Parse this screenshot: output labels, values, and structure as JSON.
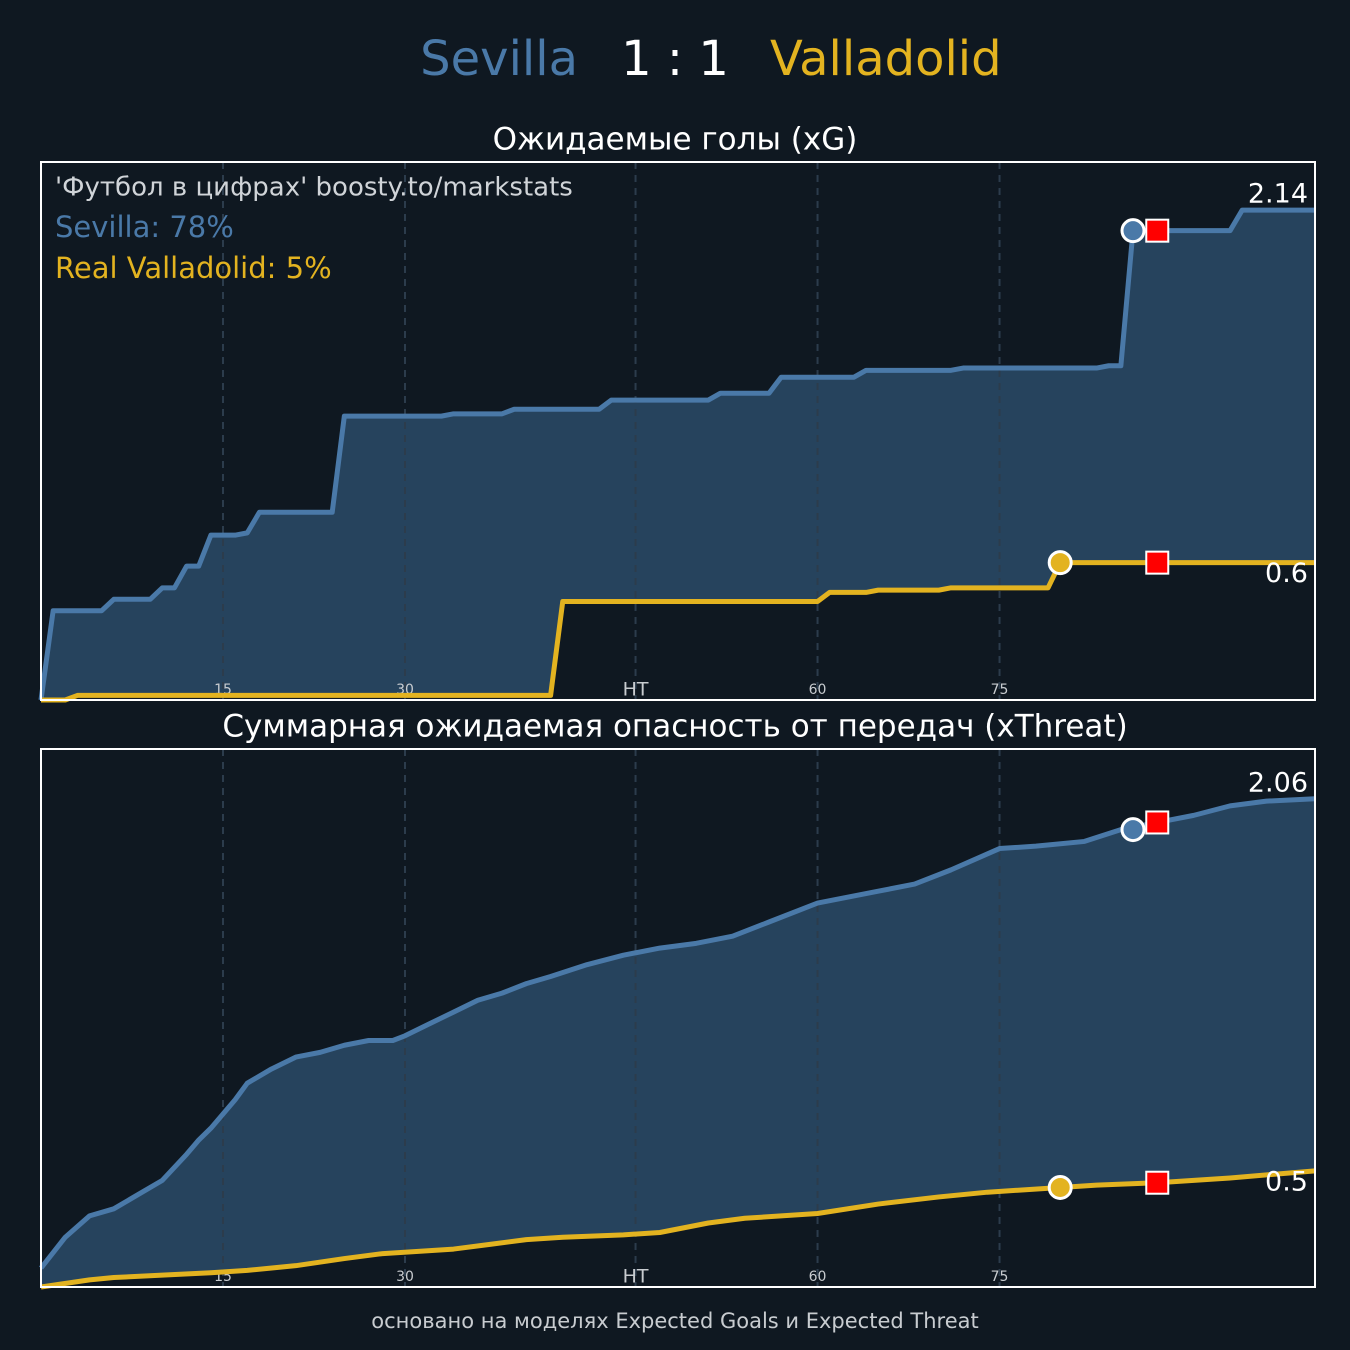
{
  "header": {
    "home": "Sevilla",
    "score": "1 : 1",
    "away": "Valladolid"
  },
  "footer": "основано на моделях Expected Goals и Expected Threat",
  "chart_data": [
    {
      "type": "line",
      "title": "Ожидаемые голы (xG)",
      "annotations": [
        {
          "text": "'Футбол в цифрах' boosty.to/markstats",
          "color": "#d0d4d8"
        },
        {
          "text": "Sevilla: 78%",
          "color": "#4a79a8"
        },
        {
          "text": "Real Valladolid: 5%",
          "color": "#e3b320"
        }
      ],
      "xlim": [
        0,
        105
      ],
      "ylim": [
        0,
        2.35
      ],
      "xticks": [
        15,
        30,
        {
          "value": 49,
          "label": "HT"
        },
        {
          "value": 64,
          "label": "60"
        },
        {
          "value": 79,
          "label": "75"
        }
      ],
      "grid": true,
      "series": [
        {
          "name": "Sevilla",
          "color": "#4a79a8",
          "end_label": "2.14",
          "x": [
            0,
            1,
            5,
            6,
            9,
            10,
            11,
            12,
            13,
            14,
            16,
            17,
            18,
            24,
            25,
            33,
            34,
            38,
            39,
            46,
            47,
            55,
            56,
            60,
            61,
            67,
            68,
            75,
            76,
            87,
            88,
            89,
            90,
            98,
            99,
            105
          ],
          "values": [
            0,
            0.39,
            0.39,
            0.44,
            0.44,
            0.49,
            0.49,
            0.585,
            0.585,
            0.72,
            0.72,
            0.73,
            0.82,
            0.82,
            1.24,
            1.24,
            1.25,
            1.25,
            1.27,
            1.27,
            1.31,
            1.31,
            1.34,
            1.34,
            1.41,
            1.41,
            1.44,
            1.44,
            1.45,
            1.45,
            1.46,
            1.46,
            2.05,
            2.05,
            2.14,
            2.14
          ]
        },
        {
          "name": "Valladolid",
          "color": "#e3b320",
          "end_label": "0.6",
          "x": [
            0,
            2,
            3,
            42,
            43,
            64,
            65,
            68,
            69,
            74,
            75,
            83,
            84,
            105
          ],
          "values": [
            0,
            0,
            0.02,
            0.02,
            0.43,
            0.43,
            0.47,
            0.47,
            0.48,
            0.48,
            0.49,
            0.49,
            0.6,
            0.6
          ]
        }
      ],
      "goals": [
        {
          "series": 0,
          "x": 90,
          "y": 2.05
        },
        {
          "series": 1,
          "x": 84,
          "y": 0.6
        }
      ],
      "red_cards": [
        {
          "x": 92,
          "y": 2.05
        },
        {
          "x": 92,
          "y": 0.6
        }
      ]
    },
    {
      "type": "line",
      "title": "Суммарная ожидаемая опасность от передач (xThreat)",
      "xlim": [
        0,
        105
      ],
      "ylim": [
        0,
        2.27
      ],
      "xticks": [
        15,
        30,
        {
          "value": 49,
          "label": "HT"
        },
        {
          "value": 64,
          "label": "60"
        },
        {
          "value": 79,
          "label": "75"
        }
      ],
      "grid": true,
      "series": [
        {
          "name": "Sevilla",
          "color": "#4a79a8",
          "end_label": "2.06",
          "x": [
            0,
            2,
            4,
            6,
            8,
            10,
            12,
            13,
            14,
            16,
            17,
            19,
            21,
            23,
            25,
            27,
            29,
            30,
            32,
            34,
            36,
            38,
            40,
            42,
            45,
            48,
            51,
            54,
            57,
            60,
            64,
            66,
            69,
            72,
            75,
            79,
            82,
            86,
            89,
            92,
            95,
            98,
            101,
            105
          ],
          "values": [
            0.08,
            0.21,
            0.3,
            0.33,
            0.39,
            0.45,
            0.56,
            0.62,
            0.67,
            0.79,
            0.86,
            0.92,
            0.97,
            0.99,
            1.02,
            1.04,
            1.04,
            1.06,
            1.11,
            1.16,
            1.21,
            1.24,
            1.28,
            1.31,
            1.36,
            1.4,
            1.43,
            1.45,
            1.48,
            1.54,
            1.62,
            1.64,
            1.67,
            1.7,
            1.76,
            1.85,
            1.86,
            1.88,
            1.93,
            1.96,
            1.99,
            2.03,
            2.05,
            2.06
          ]
        },
        {
          "name": "Valladolid",
          "color": "#e3b320",
          "end_label": "0.5",
          "x": [
            0,
            4,
            6,
            10,
            14,
            17,
            21,
            25,
            28,
            34,
            37,
            40,
            43,
            48,
            51,
            55,
            58,
            64,
            69,
            74,
            78,
            84,
            87,
            92,
            95,
            98,
            105
          ],
          "values": [
            0,
            0.03,
            0.04,
            0.05,
            0.06,
            0.07,
            0.09,
            0.12,
            0.14,
            0.16,
            0.18,
            0.2,
            0.21,
            0.22,
            0.23,
            0.27,
            0.29,
            0.31,
            0.35,
            0.38,
            0.4,
            0.42,
            0.43,
            0.44,
            0.45,
            0.46,
            0.49
          ]
        }
      ],
      "goals": [
        {
          "series": 0,
          "x": 90,
          "y": 1.93
        },
        {
          "series": 1,
          "x": 84,
          "y": 0.42
        }
      ],
      "red_cards": [
        {
          "x": 92,
          "y": 1.96
        },
        {
          "x": 92,
          "y": 0.44
        }
      ]
    }
  ]
}
